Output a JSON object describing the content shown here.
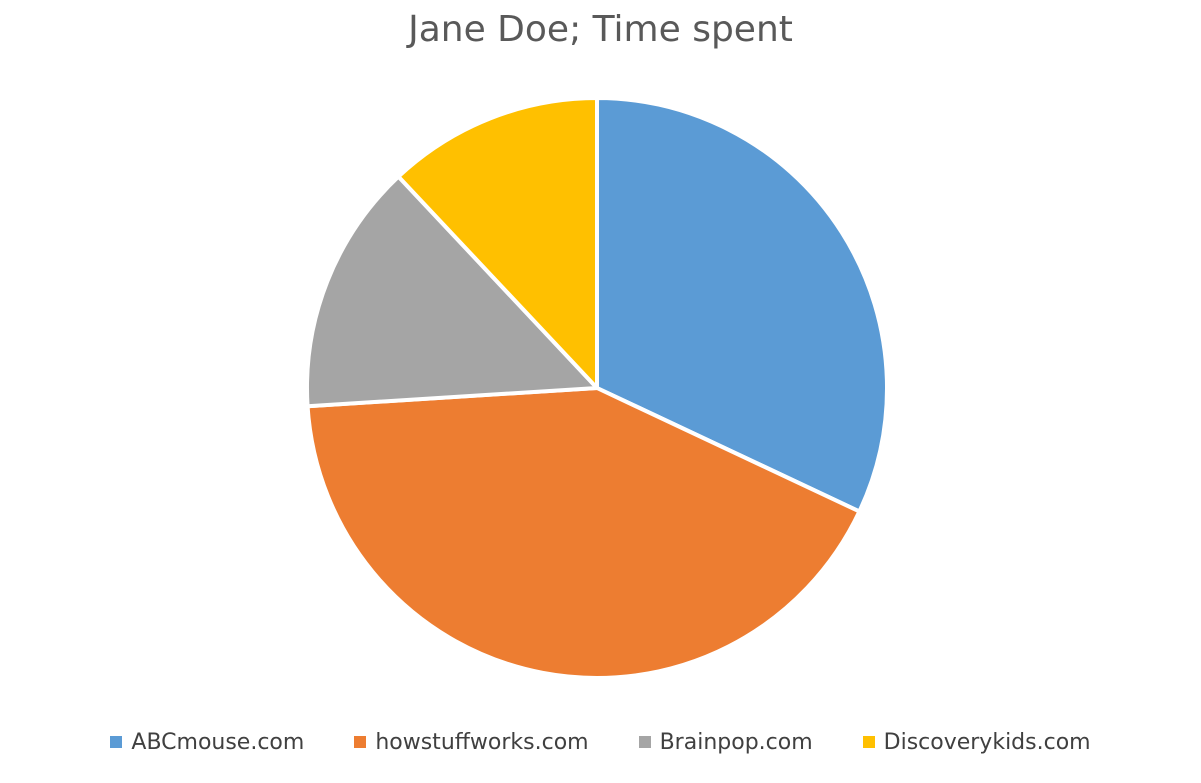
{
  "chart_data": {
    "type": "pie",
    "title": "Jane Doe; Time spent",
    "categories": [
      "ABCmouse.com",
      "howstuffworks.com",
      "Brainpop.com",
      "Discoverykids.com"
    ],
    "values": [
      32,
      42,
      14,
      12
    ],
    "colors": [
      "#5B9BD5",
      "#ED7D31",
      "#A5A5A5",
      "#FFC000"
    ],
    "start_angle_deg": 0,
    "direction": "clockwise",
    "legend": "bottom"
  }
}
